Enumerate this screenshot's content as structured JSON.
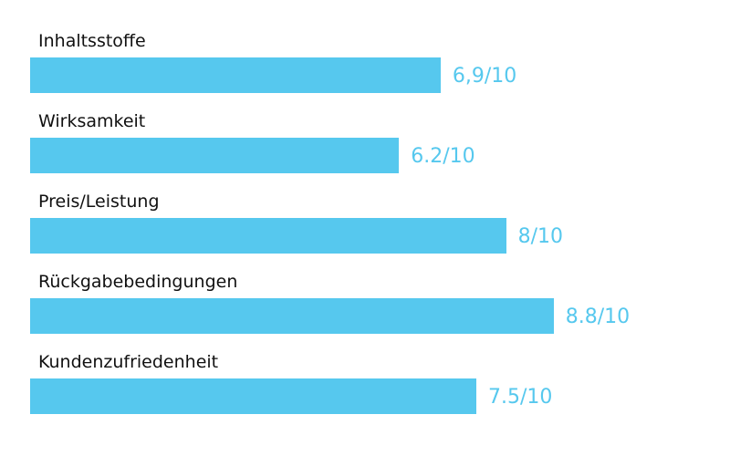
{
  "chart_data": {
    "type": "bar",
    "orientation": "horizontal",
    "categories": [
      "Inhaltsstoffe",
      "Wirksamkeit",
      "Preis/Leistung",
      "Rückgabebedingungen",
      "Kundenzufriedenheit"
    ],
    "values": [
      6.9,
      6.2,
      8,
      8.8,
      7.5
    ],
    "value_labels": [
      "6,9/10",
      "6.2/10",
      "8/10",
      "8.8/10",
      "7.5/10"
    ],
    "xlim": [
      0,
      10
    ],
    "grid": false,
    "legend": "none",
    "bar_color": "#56c8ee",
    "value_label_color": "#56c8ee",
    "category_label_color": "#111111"
  }
}
